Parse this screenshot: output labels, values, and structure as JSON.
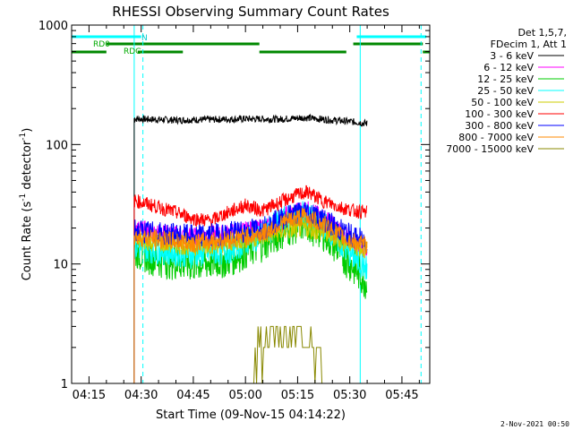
{
  "chart_data": {
    "type": "line",
    "title": "RHESSI Observing Summary Count Rates",
    "xlabel": "Start Time (09-Nov-15 04:14:22)",
    "ylabel_main": "Count Rate (s",
    "ylabel_exp1": "-1",
    "ylabel_mid": " detector",
    "ylabel_exp2": "-1",
    "ylabel_end": ")",
    "y_scale": "log",
    "ylim": [
      1,
      1000
    ],
    "xlim_minutes": [
      -5,
      98
    ],
    "x_ticks": [
      {
        "m": 0,
        "label": "04:15"
      },
      {
        "m": 15,
        "label": "04:30"
      },
      {
        "m": 30,
        "label": "04:45"
      },
      {
        "m": 45,
        "label": "05:00"
      },
      {
        "m": 60,
        "label": "05:15"
      },
      {
        "m": 75,
        "label": "05:30"
      },
      {
        "m": 90,
        "label": "05:45"
      }
    ],
    "y_ticks": [
      {
        "v": 1,
        "label": "1"
      },
      {
        "v": 10,
        "label": "10"
      },
      {
        "v": 100,
        "label": "100"
      },
      {
        "v": 1000,
        "label": "1000"
      }
    ],
    "legend_header": [
      "Det 1,5,7,",
      "FDecim 1, Att 1"
    ],
    "series": [
      {
        "name": "3 - 6 keV",
        "color": "#000000",
        "points": [
          [
            13,
            165
          ],
          [
            16,
            163
          ],
          [
            25,
            160
          ],
          [
            35,
            162
          ],
          [
            45,
            164
          ],
          [
            55,
            163
          ],
          [
            62,
            168
          ],
          [
            70,
            160
          ],
          [
            76,
            155
          ],
          [
            80,
            150
          ]
        ]
      },
      {
        "name": "6 - 12 keV",
        "color": "#ff00ff",
        "points": [
          [
            13,
            20
          ],
          [
            20,
            18
          ],
          [
            30,
            17
          ],
          [
            40,
            18
          ],
          [
            50,
            20
          ],
          [
            57,
            26
          ],
          [
            62,
            29
          ],
          [
            68,
            24
          ],
          [
            74,
            17
          ],
          [
            80,
            13
          ]
        ]
      },
      {
        "name": "12 - 25 keV",
        "color": "#00cc00",
        "points": [
          [
            13,
            13
          ],
          [
            20,
            11
          ],
          [
            30,
            10
          ],
          [
            40,
            11
          ],
          [
            50,
            15
          ],
          [
            57,
            20
          ],
          [
            62,
            22
          ],
          [
            68,
            18
          ],
          [
            74,
            11
          ],
          [
            80,
            7
          ]
        ]
      },
      {
        "name": "25 - 50 keV",
        "color": "#00ffff",
        "points": [
          [
            13,
            14
          ],
          [
            20,
            13
          ],
          [
            30,
            12
          ],
          [
            40,
            13
          ],
          [
            50,
            18
          ],
          [
            57,
            24
          ],
          [
            62,
            26
          ],
          [
            68,
            21
          ],
          [
            74,
            13
          ],
          [
            80,
            9
          ]
        ]
      },
      {
        "name": "50 - 100 keV",
        "color": "#cccc00",
        "points": [
          [
            13,
            16
          ],
          [
            20,
            15
          ],
          [
            30,
            14
          ],
          [
            40,
            15
          ],
          [
            50,
            17
          ],
          [
            57,
            19
          ],
          [
            62,
            20
          ],
          [
            68,
            18
          ],
          [
            74,
            15
          ],
          [
            80,
            13
          ]
        ]
      },
      {
        "name": "100 - 300 keV",
        "color": "#ff0000",
        "points": [
          [
            13,
            34
          ],
          [
            18,
            31
          ],
          [
            25,
            27
          ],
          [
            30,
            24
          ],
          [
            35,
            23
          ],
          [
            40,
            27
          ],
          [
            45,
            31
          ],
          [
            50,
            28
          ],
          [
            55,
            33
          ],
          [
            60,
            38
          ],
          [
            63,
            40
          ],
          [
            67,
            34
          ],
          [
            72,
            30
          ],
          [
            76,
            28
          ],
          [
            80,
            27
          ]
        ]
      },
      {
        "name": "300 - 800 keV",
        "color": "#0000ff",
        "points": [
          [
            13,
            19
          ],
          [
            20,
            18
          ],
          [
            30,
            17
          ],
          [
            40,
            18
          ],
          [
            50,
            20
          ],
          [
            57,
            25
          ],
          [
            62,
            28
          ],
          [
            68,
            23
          ],
          [
            74,
            18
          ],
          [
            80,
            15
          ]
        ]
      },
      {
        "name": "800 - 7000 keV",
        "color": "#ff8800",
        "points": [
          [
            13,
            17
          ],
          [
            20,
            16
          ],
          [
            30,
            15
          ],
          [
            40,
            16
          ],
          [
            50,
            18
          ],
          [
            57,
            23
          ],
          [
            62,
            25
          ],
          [
            68,
            21
          ],
          [
            74,
            16
          ],
          [
            80,
            14
          ]
        ]
      },
      {
        "name": "7000 - 15000 keV",
        "color": "#888800",
        "points": [
          [
            47,
            1
          ],
          [
            48,
            2
          ],
          [
            56,
            2.5
          ],
          [
            60,
            3
          ],
          [
            62,
            2.5
          ],
          [
            66,
            2
          ],
          [
            68,
            1
          ]
        ]
      }
    ],
    "flag_labels": {
      "rd0": "RD0",
      "n": "N",
      "rdg": "RDG"
    },
    "flags": {
      "cyan_bars": [
        [
          -5,
          15
        ],
        [
          77,
          97
        ]
      ],
      "green_upper": [
        [
          5,
          49
        ],
        [
          76,
          96
        ]
      ],
      "green_lower": [
        [
          -5,
          5
        ],
        [
          14,
          27
        ],
        [
          49,
          74
        ],
        [
          96,
          98
        ]
      ]
    },
    "cyan_solid_lines": [
      -5,
      13,
      78
    ],
    "cyan_dashed_lines": [
      15.5,
      95.5
    ],
    "timestamp": "2-Nov-2021 00:50"
  }
}
